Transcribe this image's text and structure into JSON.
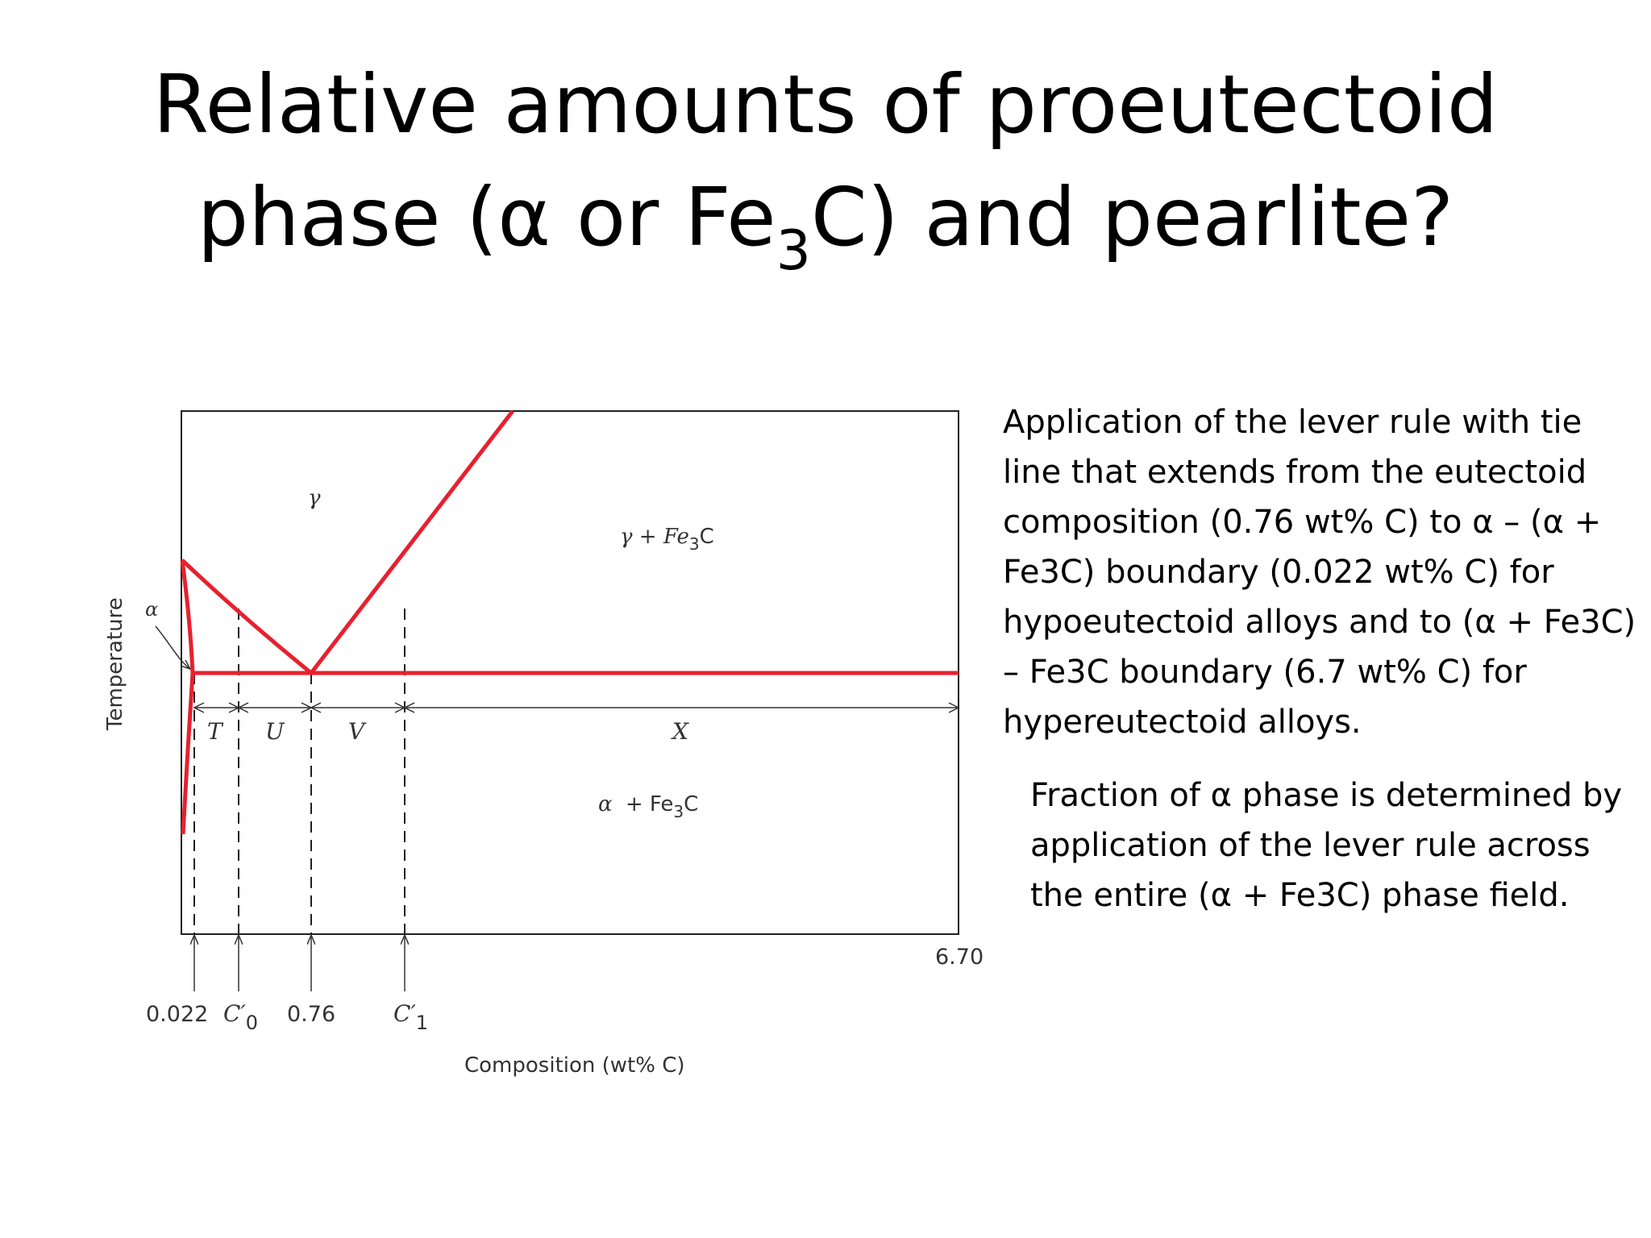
{
  "title": {
    "line1": "Relative amounts of proeutectoid",
    "line2_pre": "phase (α or Fe",
    "line2_sub": "3",
    "line2_post": "C) and pearlite?"
  },
  "paragraphs": [
    "Application of the lever rule with tie line that extends from the eutectoid composition (0.76 wt% C) to α – (α + Fe3C) boundary (0.022 wt% C) for hypoeutectoid alloys and to (α + Fe3C) – Fe3C boundary (6.7 wt% C) for hypereutectoid alloys.",
    "Fraction of α phase is determined by application of the lever rule across the entire (α + Fe3C) phase field."
  ],
  "diagram": {
    "y_axis_label": "Temperature",
    "x_axis_label": "Composition (wt% C)",
    "region_gamma": "γ",
    "region_gamma_fe3c_pre": "γ + Fe",
    "region_gamma_fe3c_sub": "3",
    "region_gamma_fe3c_post": "C",
    "region_alpha": "α",
    "region_alpha_fe3c_alpha": "α",
    "region_alpha_fe3c_pre": " + Fe",
    "region_alpha_fe3c_sub": "3",
    "region_alpha_fe3c_post": "C",
    "segments": [
      "T",
      "U",
      "V",
      "X"
    ],
    "tick_0022": "0.022",
    "tick_c0": "C",
    "tick_c0_prime": "′",
    "tick_c0_sub": "0",
    "tick_076": "0.76",
    "tick_c1": "C",
    "tick_c1_prime": "′",
    "tick_c1_sub": "1",
    "tick_670": "6.70",
    "line_color": "#e8202e"
  }
}
